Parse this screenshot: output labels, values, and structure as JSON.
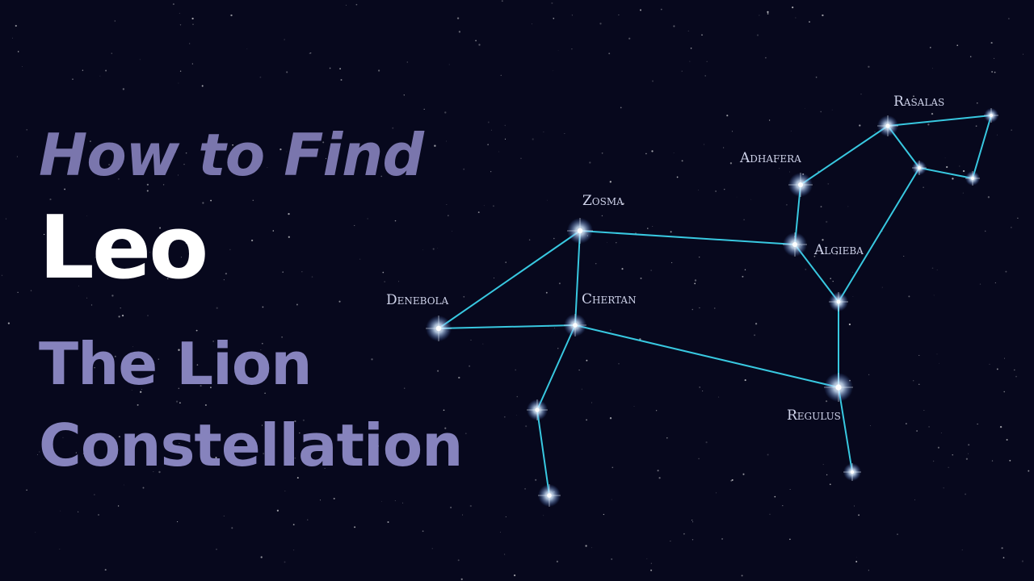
{
  "title": {
    "line1": "How to Find",
    "line2": "Leo",
    "line3": "The Lion",
    "line4": "Constellation"
  },
  "stars": [
    {
      "id": "rasalas",
      "label": "Rasalas"
    },
    {
      "id": "adhafera",
      "label": "Adhafera"
    },
    {
      "id": "zosma",
      "label": "Zosma"
    },
    {
      "id": "algieba",
      "label": "Algieba"
    },
    {
      "id": "denebola",
      "label": "Denebola"
    },
    {
      "id": "chertan",
      "label": "Chertan"
    },
    {
      "id": "regulus",
      "label": "Regulus"
    }
  ],
  "colors": {
    "background": "#07081d",
    "line": "#38c8e0",
    "title_white": "#ffffff",
    "title_purple": "#8683bd"
  }
}
